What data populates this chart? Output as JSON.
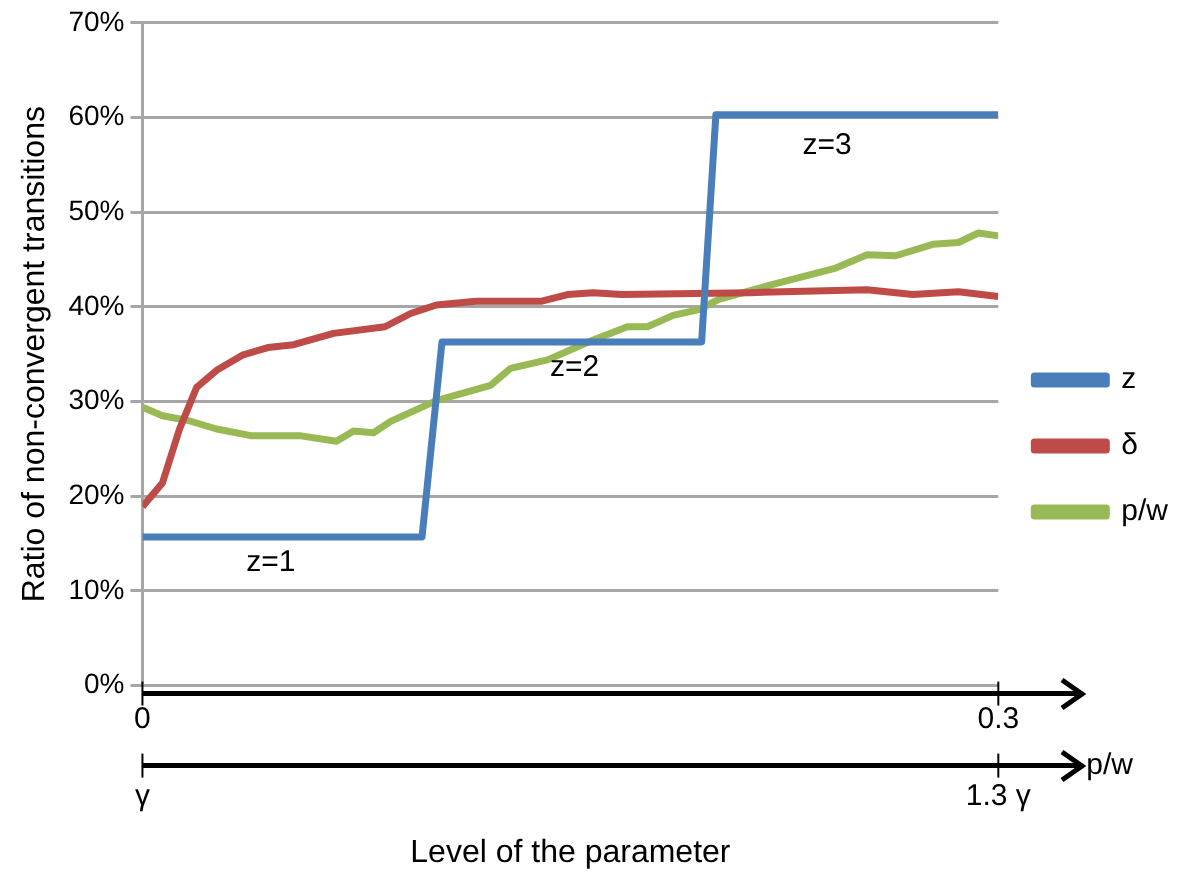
{
  "chart_data": {
    "type": "line",
    "xlabel": "Level of the parameter",
    "ylabel": "Ratio of non-convergent transitions",
    "x2label": "p/w",
    "xlim": [
      0,
      0.3
    ],
    "xticks": [
      0,
      0.3
    ],
    "ylim": [
      0,
      70
    ],
    "yticks": [
      {
        "value": 0,
        "label": "0%"
      },
      {
        "value": 10,
        "label": "10%"
      },
      {
        "value": 20,
        "label": "20%"
      },
      {
        "value": 30,
        "label": "30%"
      },
      {
        "value": 40,
        "label": "40%"
      },
      {
        "value": 50,
        "label": "50%"
      },
      {
        "value": 60,
        "label": "60%"
      },
      {
        "value": 70,
        "label": "70%"
      }
    ],
    "grid": "y",
    "legend": "right",
    "marker": "none",
    "series": [
      {
        "name": "z",
        "color": "#4a7ebb",
        "x": [
          0,
          0.098,
          0.105,
          0.196,
          0.201,
          0.3
        ],
        "values": [
          15.7,
          15.7,
          36.3,
          36.3,
          60.3,
          60.3
        ]
      },
      {
        "name": "δ",
        "color": "#be4b48",
        "x": [
          0,
          0.007,
          0.013,
          0.019,
          0.026,
          0.035,
          0.044,
          0.053,
          0.067,
          0.085,
          0.094,
          0.103,
          0.117,
          0.14,
          0.149,
          0.158,
          0.168,
          0.213,
          0.254,
          0.27,
          0.286,
          0.3
        ],
        "values": [
          18.9,
          21.4,
          27.1,
          31.5,
          33.3,
          34.9,
          35.7,
          36.0,
          37.2,
          37.9,
          39.3,
          40.2,
          40.6,
          40.6,
          41.3,
          41.5,
          41.3,
          41.5,
          41.8,
          41.3,
          41.6,
          41.1
        ]
      },
      {
        "name": "p/w",
        "color": "#98b954",
        "x": [
          0,
          0.007,
          0.016,
          0.026,
          0.038,
          0.055,
          0.068,
          0.074,
          0.081,
          0.087,
          0.103,
          0.122,
          0.129,
          0.142,
          0.158,
          0.17,
          0.177,
          0.186,
          0.195,
          0.202,
          0.22,
          0.243,
          0.254,
          0.264,
          0.277,
          0.286,
          0.293,
          0.3
        ],
        "values": [
          29.4,
          28.5,
          28.0,
          27.1,
          26.4,
          26.4,
          25.8,
          26.9,
          26.7,
          27.9,
          30.1,
          31.7,
          33.5,
          34.4,
          36.5,
          37.9,
          37.9,
          39.1,
          39.7,
          40.8,
          42.3,
          44.1,
          45.5,
          45.4,
          46.6,
          46.8,
          47.8,
          47.5
        ]
      }
    ],
    "annotations": [
      "z=1",
      "z=2",
      "z=3",
      "γ",
      "1.3 γ"
    ]
  }
}
